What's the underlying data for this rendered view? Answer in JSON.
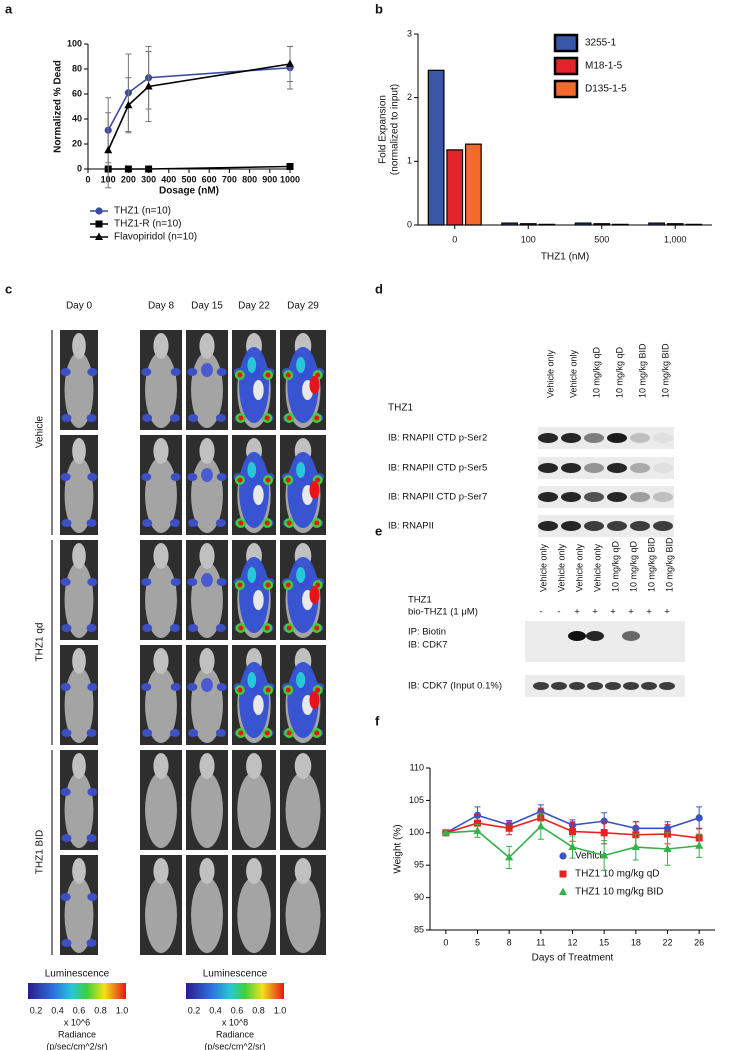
{
  "chart_data": [
    {
      "type": "line",
      "panel_label": "a",
      "ylabel": "Normalized % Dead",
      "xlabel": "Dosage (nM)",
      "x": [
        100,
        200,
        300,
        1000
      ],
      "xlim": [
        0,
        1000
      ],
      "xticks": [
        0,
        100,
        200,
        300,
        400,
        500,
        600,
        700,
        800,
        900,
        1000
      ],
      "ylim": [
        0,
        100
      ],
      "yticks": [
        0,
        20,
        40,
        60,
        80,
        100
      ],
      "legend": "below",
      "series": [
        {
          "name": "THZ1 (n=10)",
          "color": "#3b4aa0",
          "marker": "circle",
          "values": [
            31,
            61,
            73,
            81
          ],
          "errors": [
            26,
            31,
            25,
            17
          ]
        },
        {
          "name": "THZ1-R (n=10)",
          "color": "#000000",
          "marker": "square",
          "values": [
            0,
            0,
            0,
            2
          ],
          "errors": [
            1,
            1,
            1,
            2
          ]
        },
        {
          "name": "Flavopiridol (n=10)",
          "color": "#000000",
          "marker": "triangle",
          "values": [
            15,
            51,
            66,
            84
          ],
          "errors": [
            30,
            22,
            28,
            14
          ]
        }
      ]
    },
    {
      "type": "bar",
      "panel_label": "b",
      "ylabel": [
        "Fold Expansion",
        "(normalized to input)"
      ],
      "xlabel": "THZ1 (nM)",
      "categories": [
        "0",
        "100",
        "500",
        "1,000"
      ],
      "ylim": [
        0,
        3
      ],
      "yticks": [
        0,
        1,
        2,
        3
      ],
      "legend": "upper right",
      "edgecolor": "#000000",
      "series": [
        {
          "name": "3255-1",
          "color": "#3a56a8",
          "values": [
            2.43,
            0.03,
            0.03,
            0.03
          ]
        },
        {
          "name": "M18-1-5",
          "color": "#e3242b",
          "values": [
            1.18,
            0.02,
            0.02,
            0.02
          ]
        },
        {
          "name": "D135-1-5",
          "color": "#f26a2e",
          "values": [
            1.27,
            0.01,
            0.01,
            0.01
          ]
        }
      ]
    },
    {
      "type": "line",
      "panel_label": "f",
      "ylabel": "Weight (%)",
      "xlabel": "Days of Treatment",
      "categories": [
        "0",
        "5",
        "8",
        "11",
        "12",
        "15",
        "18",
        "22",
        "26"
      ],
      "ylim": [
        85,
        110
      ],
      "yticks": [
        85,
        90,
        95,
        100,
        105,
        110
      ],
      "legend": "lower right",
      "series": [
        {
          "name": "Vehicle",
          "color": "#3a52c4",
          "marker": "circle",
          "values": [
            100,
            102.7,
            101.2,
            103.3,
            101.2,
            101.8,
            100.7,
            100.7,
            102.3
          ],
          "errors": [
            0,
            1.3,
            0.7,
            1,
            0.8,
            1.3,
            1,
            1,
            1.7
          ]
        },
        {
          "name": "THZ1 10 mg/kg qD",
          "color": "#e8231f",
          "marker": "square",
          "values": [
            100,
            101.5,
            100.7,
            102.3,
            100.2,
            100,
            99.7,
            99.8,
            99.2
          ],
          "errors": [
            0,
            1.3,
            1,
            1.5,
            1.5,
            1.7,
            2,
            1.5,
            1.5
          ]
        },
        {
          "name": "THZ1 10 mg/kg BID",
          "color": "#33b24a",
          "marker": "triangle",
          "values": [
            100,
            100.3,
            96.2,
            101,
            97.8,
            96.5,
            97.8,
            97.5,
            98
          ],
          "errors": [
            0,
            1,
            1.7,
            2,
            1.7,
            2.3,
            2,
            2.5,
            1.8
          ]
        }
      ]
    }
  ],
  "panel_c": {
    "label": "c",
    "days": [
      "Day 0",
      "Day 8",
      "Day 15",
      "Day 22",
      "Day 29"
    ],
    "groups": [
      "Vehicle",
      "THZ1 qd",
      "THZ1 BID"
    ],
    "colorbars": [
      {
        "title": "Luminescence",
        "ticks": [
          "0.2",
          "0.4",
          "0.6",
          "0.8",
          "1.0"
        ],
        "scale": "x 10^6",
        "unit": [
          "Radiance",
          "(p/sec/cm^2/sr)"
        ]
      },
      {
        "title": "Luminescence",
        "ticks": [
          "0.2",
          "0.4",
          "0.6",
          "0.8",
          "1.0"
        ],
        "scale": "x 10^8",
        "unit": [
          "Radiance",
          "(p/sec/cm^2/sr)"
        ]
      }
    ]
  },
  "panel_d": {
    "label": "d",
    "lanes": [
      "Vehicle only",
      "Vehicle only",
      "10 mg/kg qD",
      "10 mg/kg qD",
      "10 mg/kg BID",
      "10 mg/kg BID"
    ],
    "treatment": "THZ1",
    "rows": [
      "IB: RNAPII CTD p-Ser2",
      "IB: RNAPII CTD p-Ser5",
      "IB: RNAPII CTD p-Ser7",
      "IB: RNAPII"
    ]
  },
  "panel_e": {
    "label": "e",
    "lanes": [
      "Vehicle only",
      "Vehicle only",
      "Vehicle only",
      "Vehicle only",
      "10 mg/kg qD",
      "10 mg/kg qD",
      "10 mg/kg BID",
      "10 mg/kg BID"
    ],
    "treatment": "THZ1",
    "probe": "bio-THZ1 (1 μM)",
    "probe_signs": [
      "-",
      "-",
      "+",
      "+",
      "+",
      "+",
      "+",
      "+"
    ],
    "rows": [
      "IP: Biotin",
      "IB: CDK7"
    ],
    "input_row": "IB: CDK7 (Input 0.1%)"
  }
}
